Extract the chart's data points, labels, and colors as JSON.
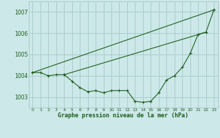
{
  "bg_color": "#cce8e8",
  "line_color": "#1a5c1a",
  "grid_color": "#aacccc",
  "title": "Graphe pression niveau de la mer (hPa)",
  "ylim": [
    1002.5,
    1007.5
  ],
  "yticks": [
    1003,
    1004,
    1005,
    1006,
    1007
  ],
  "xlim": [
    -0.5,
    23.5
  ],
  "xticks": [
    0,
    1,
    2,
    3,
    4,
    5,
    6,
    7,
    8,
    9,
    10,
    11,
    12,
    13,
    14,
    15,
    16,
    17,
    18,
    19,
    20,
    21,
    22,
    23
  ],
  "series": [
    {
      "x": [
        0,
        1,
        2,
        3,
        4
      ],
      "y": [
        1004.15,
        1004.15,
        1004.0,
        1004.05,
        1004.05
      ],
      "marker": "+"
    },
    {
      "x": [
        0,
        23
      ],
      "y": [
        1004.15,
        1007.1
      ],
      "marker": null
    },
    {
      "x": [
        4,
        22
      ],
      "y": [
        1004.05,
        1006.05
      ],
      "marker": null
    },
    {
      "x": [
        4,
        5,
        6,
        7,
        8,
        9,
        10,
        11,
        12,
        13,
        14,
        15,
        16,
        17,
        18,
        19,
        20,
        21,
        22,
        23
      ],
      "y": [
        1004.05,
        1003.75,
        1003.45,
        1003.25,
        1003.3,
        1003.2,
        1003.3,
        1003.3,
        1003.3,
        1002.8,
        1002.75,
        1002.8,
        1003.2,
        1003.8,
        1004.0,
        1004.4,
        1005.05,
        1005.95,
        1006.05,
        1007.1
      ],
      "marker": "+"
    }
  ]
}
